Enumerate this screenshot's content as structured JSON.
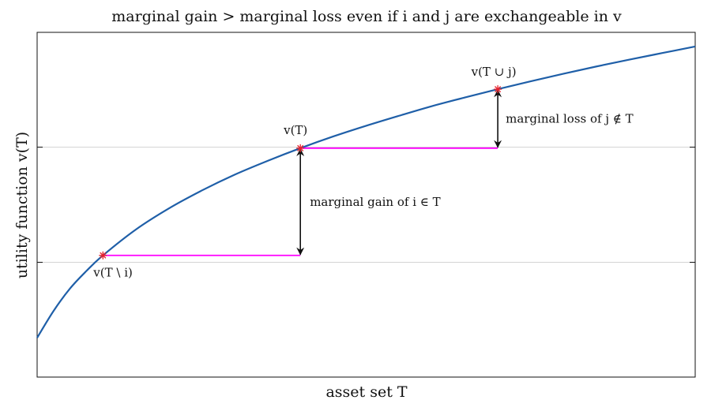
{
  "chart_data": {
    "type": "line",
    "title": "marginal gain > marginal loss even if i and j are exchangeable in v",
    "xlabel": "asset set T",
    "ylabel": "utility function v(T)",
    "xlim": [
      0,
      10
    ],
    "ylim": [
      0,
      10
    ],
    "grid": "horizontal at marked levels",
    "series": [
      {
        "color": "#1f5fa8",
        "x": [
          0,
          0.25,
          0.5,
          0.75,
          1,
          1.5,
          2,
          2.5,
          3,
          3.5,
          4,
          4.5,
          5,
          5.5,
          6,
          6.5,
          7,
          7.5,
          8,
          8.5,
          9,
          9.5,
          10
        ],
        "y": [
          1.14,
          1.92,
          2.57,
          3.08,
          3.53,
          4.28,
          4.89,
          5.41,
          5.87,
          6.27,
          6.64,
          6.98,
          7.29,
          7.58,
          7.86,
          8.11,
          8.35,
          8.58,
          8.8,
          9.01,
          9.21,
          9.4,
          9.59
        ]
      }
    ],
    "highlight_points": [
      {
        "label": "v(T \\ i)",
        "x": 1.0,
        "y": 3.53,
        "color": "#e8212b"
      },
      {
        "label": "v(T)",
        "x": 4.0,
        "y": 6.64,
        "color": "#e8212b"
      },
      {
        "label": "v(T ∪ j)",
        "x": 7.0,
        "y": 8.35,
        "color": "#e8212b"
      }
    ],
    "horizontal_segments": [
      {
        "x": [
          1.0,
          4.0
        ],
        "y": 3.53,
        "color": "#ff00ff"
      },
      {
        "x": [
          4.0,
          7.0
        ],
        "y": 6.64,
        "color": "#ff00ff"
      }
    ],
    "annotations": [
      {
        "text": "marginal gain of i ∈ T",
        "x": 4.0,
        "y_from": 3.53,
        "y_to": 6.64
      },
      {
        "text": "marginal loss of j ∉ T",
        "x": 7.0,
        "y_from": 6.64,
        "y_to": 8.35
      }
    ],
    "gridlines_y": [
      3.33,
      6.67
    ]
  }
}
